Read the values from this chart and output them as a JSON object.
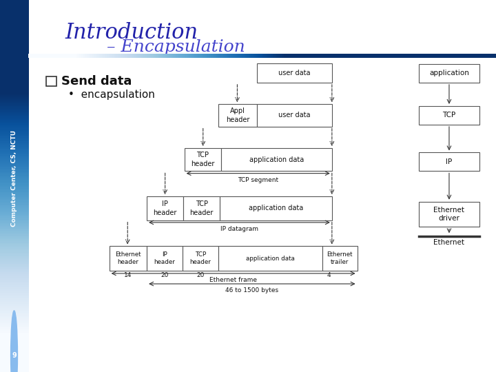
{
  "title1": "Introduction",
  "title2": "– Encapsulation",
  "bullet_main": "Send data",
  "bullet_sub": "encapsulation",
  "sidebar_text": "Computer Center, CS, NCTU",
  "page_num": "9",
  "bg_color": "#ffffff",
  "title1_color": "#2222aa",
  "title2_color": "#4444cc",
  "box_edge_color": "#555555",
  "arrow_color": "#333333",
  "text_color": "#111111"
}
